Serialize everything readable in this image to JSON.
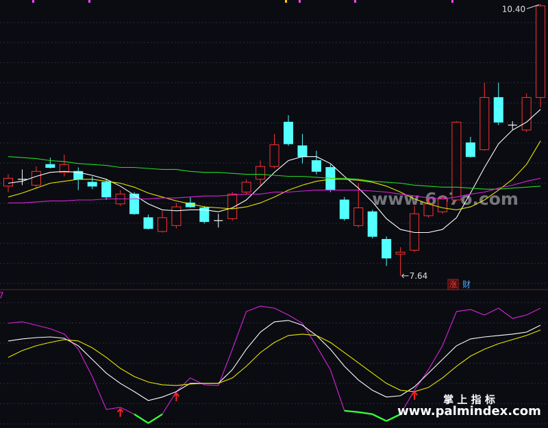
{
  "chart_data": [
    {
      "type": "candlestick",
      "open": [
        8.55,
        8.62,
        8.56,
        8.77,
        8.69,
        8.7,
        8.59,
        8.59,
        8.37,
        8.47,
        8.23,
        8.09,
        8.15,
        8.38,
        8.33,
        8.2,
        8.22,
        8.49,
        8.62,
        8.75,
        9.2,
        8.96,
        8.81,
        8.74,
        8.41,
        8.15,
        8.29,
        8.01,
        7.86,
        7.9,
        8.25,
        8.29,
        8.41,
        8.99,
        8.92,
        9.45,
        9.17,
        9.12,
        9.45
      ],
      "high": [
        8.67,
        8.72,
        8.75,
        8.84,
        8.87,
        8.74,
        8.65,
        8.62,
        8.51,
        8.49,
        8.26,
        8.3,
        8.38,
        8.44,
        8.35,
        8.27,
        8.49,
        8.62,
        8.81,
        9.08,
        9.27,
        9.08,
        8.91,
        8.77,
        8.44,
        8.58,
        8.31,
        8.04,
        7.93,
        8.35,
        8.42,
        8.46,
        9.21,
        9.05,
        9.6,
        9.6,
        9.21,
        9.49,
        10.4
      ],
      "low": [
        8.49,
        8.56,
        8.53,
        8.73,
        8.65,
        8.51,
        8.52,
        8.41,
        8.35,
        8.26,
        8.11,
        8.08,
        8.12,
        8.33,
        8.17,
        8.13,
        8.2,
        8.47,
        8.56,
        8.73,
        8.96,
        8.78,
        8.67,
        8.49,
        8.2,
        8.13,
        8.02,
        7.74,
        7.64,
        7.88,
        8.23,
        8.27,
        8.4,
        8.84,
        8.91,
        9.17,
        9.12,
        9.1,
        9.35
      ],
      "close": [
        8.63,
        8.62,
        8.7,
        8.74,
        8.77,
        8.62,
        8.55,
        8.44,
        8.47,
        8.27,
        8.12,
        8.23,
        8.34,
        8.34,
        8.19,
        8.2,
        8.47,
        8.59,
        8.75,
        8.97,
        8.98,
        8.85,
        8.7,
        8.51,
        8.22,
        8.33,
        8.04,
        7.82,
        7.88,
        8.27,
        8.37,
        8.42,
        9.2,
        8.85,
        9.45,
        9.2,
        9.17,
        9.45,
        10.38
      ],
      "up_color": "#ff3232",
      "down_color": "#54ffff",
      "flat_color": "#ffffff",
      "ylim": [
        7.52,
        10.44
      ],
      "series": [
        {
          "color": "#ffffff",
          "values": [
            8.58,
            8.6,
            8.65,
            8.69,
            8.7,
            8.69,
            8.66,
            8.62,
            8.55,
            8.46,
            8.37,
            8.31,
            8.3,
            8.31,
            8.31,
            8.29,
            8.33,
            8.41,
            8.55,
            8.69,
            8.81,
            8.85,
            8.85,
            8.78,
            8.65,
            8.53,
            8.39,
            8.22,
            8.11,
            8.08,
            8.08,
            8.11,
            8.23,
            8.48,
            8.74,
            8.98,
            9.12,
            9.2,
            9.33
          ]
        },
        {
          "color": "#e8e800",
          "values": [
            8.44,
            8.48,
            8.53,
            8.58,
            8.6,
            8.62,
            8.62,
            8.6,
            8.58,
            8.54,
            8.48,
            8.44,
            8.4,
            8.37,
            8.34,
            8.33,
            8.32,
            8.34,
            8.38,
            8.44,
            8.51,
            8.56,
            8.6,
            8.62,
            8.62,
            8.61,
            8.59,
            8.55,
            8.49,
            8.42,
            8.37,
            8.33,
            8.31,
            8.34,
            8.41,
            8.51,
            8.62,
            8.77,
            9.01
          ]
        },
        {
          "color": "#22dd22",
          "values": [
            8.85,
            8.84,
            8.83,
            8.81,
            8.8,
            8.78,
            8.77,
            8.76,
            8.74,
            8.74,
            8.73,
            8.72,
            8.72,
            8.7,
            8.69,
            8.69,
            8.68,
            8.67,
            8.67,
            8.66,
            8.65,
            8.65,
            8.64,
            8.63,
            8.63,
            8.62,
            8.6,
            8.59,
            8.58,
            8.56,
            8.55,
            8.54,
            8.54,
            8.53,
            8.52,
            8.52,
            8.53,
            8.54,
            8.55
          ]
        },
        {
          "color": "#dd22dd",
          "values": [
            8.38,
            8.38,
            8.39,
            8.4,
            8.4,
            8.41,
            8.41,
            8.42,
            8.42,
            8.42,
            8.42,
            8.43,
            8.43,
            8.44,
            8.45,
            8.45,
            8.46,
            8.47,
            8.47,
            8.49,
            8.49,
            8.5,
            8.51,
            8.51,
            8.51,
            8.51,
            8.5,
            8.49,
            8.47,
            8.45,
            8.43,
            8.42,
            8.44,
            8.47,
            8.49,
            8.53,
            8.56,
            8.6,
            8.63
          ]
        }
      ],
      "max_label": {
        "value": 10.4,
        "label": "10.40"
      },
      "min_label": {
        "value": 7.64,
        "label": "7.64"
      }
    },
    {
      "type": "line",
      "label": "7",
      "ylim": [
        -18,
        125
      ],
      "series": [
        {
          "color": "#dd22dd",
          "values": [
            91.4,
            92.9,
            89.3,
            85.7,
            80.0,
            64.3,
            35.7,
            1.4,
            3.6,
            -3.6,
            -12.9,
            -3.6,
            20.0,
            34.3,
            27.1,
            26.4,
            64.3,
            103.6,
            109.3,
            107.1,
            100,
            91.4,
            67.9,
            42.9,
            0,
            -1.4,
            -3.6,
            -10.7,
            -3.6,
            21.4,
            42.9,
            67.9,
            103.6,
            105.7,
            100,
            107.1,
            96.4,
            100,
            107.1
          ]
        },
        {
          "color": "#ffffff",
          "values": [
            72.9,
            75,
            76.4,
            77.1,
            75.7,
            67.9,
            53.6,
            39.3,
            28.6,
            20,
            10.7,
            14.3,
            20,
            28.6,
            28.6,
            28.6,
            42.9,
            64.3,
            82.1,
            92.9,
            94.3,
            89.3,
            78.6,
            64.3,
            46.4,
            32.1,
            21.4,
            14.3,
            15.7,
            25,
            39.3,
            53.6,
            67.9,
            75,
            77.1,
            78.6,
            80,
            82.1,
            89.3
          ]
        },
        {
          "color": "#e8e800",
          "values": [
            55.7,
            62.9,
            67.9,
            71.4,
            74.3,
            72.9,
            65.7,
            55.7,
            44.3,
            35.7,
            30,
            27.1,
            26.4,
            27.9,
            28.6,
            28.6,
            34.3,
            46.4,
            60.7,
            71.4,
            78.6,
            80,
            78.6,
            71.4,
            60.7,
            50,
            39.3,
            28.6,
            21.4,
            20,
            24.3,
            34.3,
            46.4,
            57.1,
            64.3,
            70,
            74.3,
            78.6,
            84.3
          ]
        }
      ],
      "negative_color": "#33ff33",
      "signal_indices": [
        8,
        12,
        29
      ],
      "signal_color": "#ff2020"
    }
  ],
  "watermark": "www.6o7o.com",
  "badges": [
    "涨",
    "财"
  ],
  "brand": {
    "name": "掌 上 指 标",
    "url": "www.palmindex.com"
  }
}
